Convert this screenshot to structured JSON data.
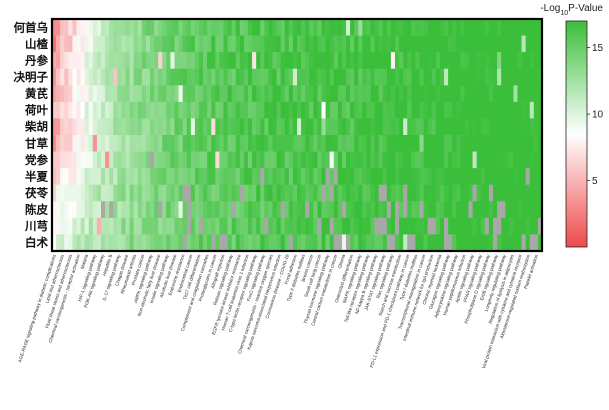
{
  "chart_data": {
    "type": "heatmap",
    "title": "",
    "xlabel": "",
    "ylabel": "",
    "rows": [
      "何首乌",
      "山楂",
      "丹参",
      "决明子",
      "黄芪",
      "荷叶",
      "柴胡",
      "甘草",
      "党参",
      "半夏",
      "茯苓",
      "陈皮",
      "川芎",
      "白术"
    ],
    "columns": [
      "AGE-RAGE signaling pathway in diabetic complications",
      "Lipid and atherosclerosis",
      "Fluid shear stress and atherosclerosis",
      "Chemical carcinogenesis - receptor activation",
      "Malaria",
      "HIF-1 signaling pathway",
      "PI3K-Akt signaling pathway",
      "Hepatitis B",
      "IL-17 signaling pathway",
      "Chagas disease",
      "Rheumatoid arthritis",
      "Prostate cancer",
      "AMPK signaling pathway",
      "Non-alcoholic fatty liver disease",
      "Insulin signaling pathway",
      "Alcoholic liver disease",
      "Endocrine resistance",
      "Endometrial cancer",
      "Th17 cell differentiation",
      "Complement and coagulation cascades",
      "Proteoglycans in cancer",
      "Allograft rejection",
      "Relaxin signaling pathway",
      "EGFR tyrosine kinase inhibitor resistance",
      "Human T-cell leukemia virus 1 infection",
      "C-type lectin receptor signaling pathway",
      "FoxO signaling pathway",
      "Chemical carcinogenesis - reactive oxygen species",
      "Kaposi sarcoma-associated herpesvirus infection",
      "Coronavirus disease - COVID-19",
      "Focal adhesion",
      "Type II diabetes mellitus",
      "Breast cancer",
      "Small cell lung cancer",
      "Thyroid hormone signaling pathway",
      "Central carbon metabolism in cancer",
      "Glioma",
      "Osteoclast differentiation",
      "MAPK signaling pathway",
      "Toll-like receptor signaling pathway",
      "NF-kappa B signaling pathway",
      "JAK-STAT signaling pathway",
      "Ras signaling pathway",
      "Starch and sucrose metabolism",
      "PD-L1 expression and PD-1 checkpoint pathway in cancer",
      "Type I diabetes mellitus",
      "Transcriptional misregulation in cancer",
      "Intestinal immune network for IgA production",
      "Chronic myeloid leukemia",
      "Glucagon signaling pathway",
      "Adipocytokine signaling pathway",
      "Human papillomavirus infection",
      "Apelin signaling pathway",
      "PPAR signaling pathway",
      "Phospholipase D signaling pathway",
      "ErbB signaling pathway",
      "Longevity regulating pathway",
      "Regulation of lipolysis in adipocytes",
      "Viral protein interaction with cytokine and cytokine receptor",
      "Aldosterone-regulated sodium reabsorption",
      "Platelet activation"
    ],
    "color_scale": {
      "label": "-Log10P-Value",
      "ticks": [
        5,
        10,
        15
      ],
      "range": [
        0,
        17
      ],
      "low_color": "#3bbf3b",
      "mid_color": "#ffffff",
      "high_color": "#ef4a4a",
      "missing_color": "#a8a8a8"
    },
    "pattern": {
      "n_cells_x": 120,
      "profile": [
        14.5,
        13.8,
        13.2,
        12.5,
        13.0,
        12.2,
        12.6,
        13.2,
        11.6,
        11.0,
        9.5,
        9.0,
        8.3,
        7.3
      ],
      "decay": [
        0.21,
        0.2,
        0.2,
        0.19,
        0.19,
        0.18,
        0.18,
        0.19,
        0.17,
        0.16,
        0.15,
        0.14,
        0.13,
        0.12
      ],
      "grey_rate": [
        0,
        0,
        0,
        0,
        0,
        0,
        0,
        0,
        0.02,
        0.07,
        0.14,
        0.18,
        0.24,
        0.3
      ],
      "seed": 7
    }
  }
}
